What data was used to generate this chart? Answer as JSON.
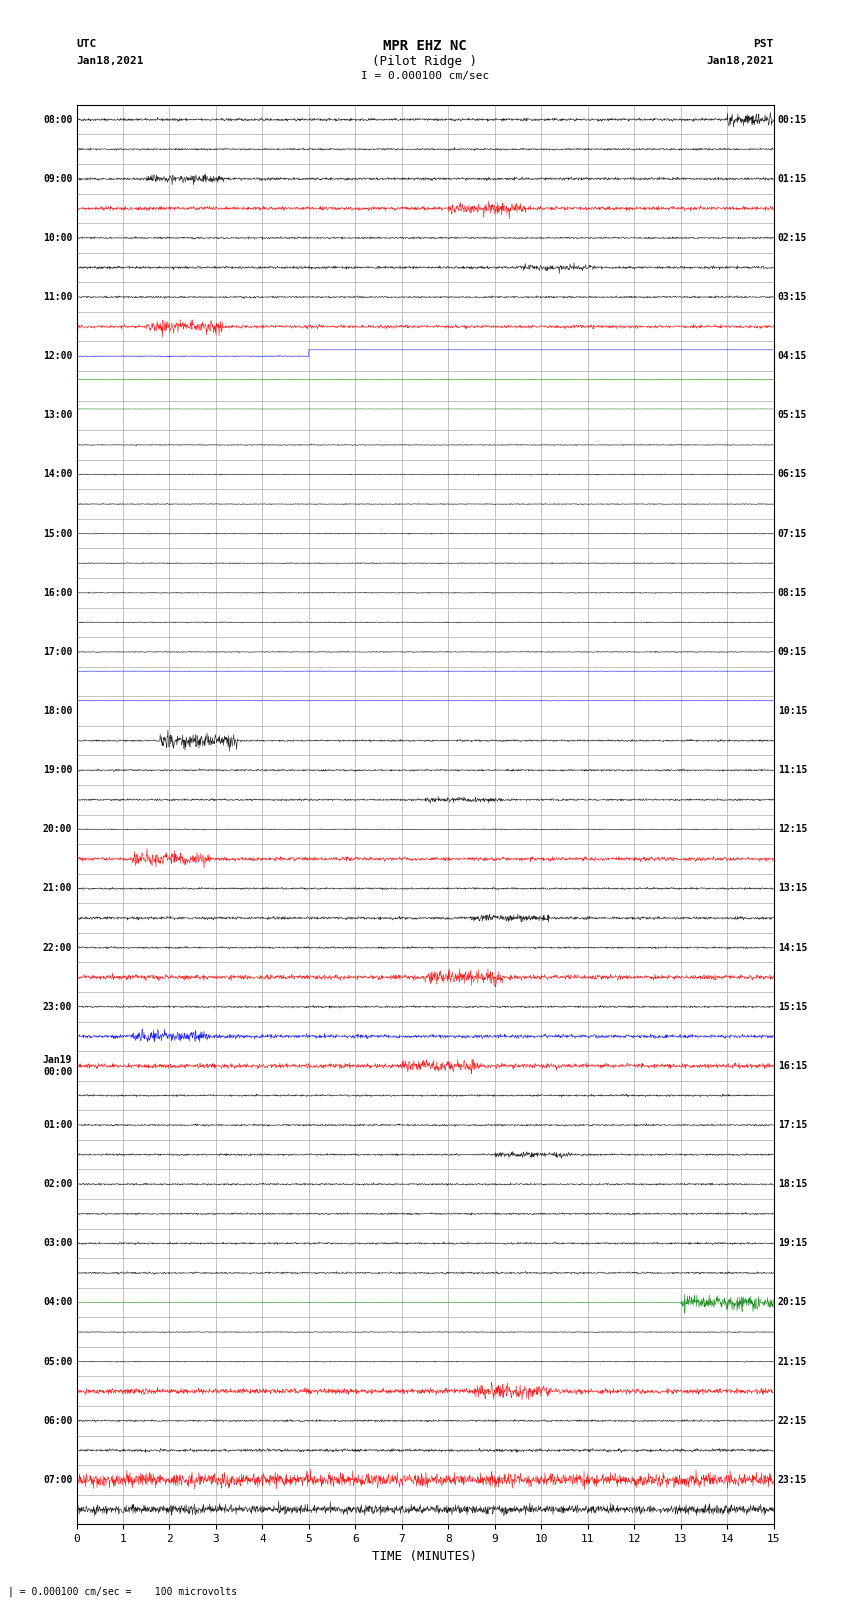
{
  "title_line1": "MPR EHZ NC",
  "title_line2": "(Pilot Ridge )",
  "scale_label": "I = 0.000100 cm/sec",
  "footer_label": "| = 0.000100 cm/sec =    100 microvolts",
  "xlabel": "TIME (MINUTES)",
  "left_times_utc": [
    "08:00",
    "",
    "09:00",
    "",
    "10:00",
    "",
    "11:00",
    "",
    "12:00",
    "",
    "13:00",
    "",
    "14:00",
    "",
    "15:00",
    "",
    "16:00",
    "",
    "17:00",
    "",
    "18:00",
    "",
    "19:00",
    "",
    "20:00",
    "",
    "21:00",
    "",
    "22:00",
    "",
    "23:00",
    "",
    "Jan19\n00:00",
    "",
    "01:00",
    "",
    "02:00",
    "",
    "03:00",
    "",
    "04:00",
    "",
    "05:00",
    "",
    "06:00",
    "",
    "07:00",
    ""
  ],
  "right_times_pst": [
    "00:15",
    "",
    "01:15",
    "",
    "02:15",
    "",
    "03:15",
    "",
    "04:15",
    "",
    "05:15",
    "",
    "06:15",
    "",
    "07:15",
    "",
    "08:15",
    "",
    "09:15",
    "",
    "10:15",
    "",
    "11:15",
    "",
    "12:15",
    "",
    "13:15",
    "",
    "14:15",
    "",
    "15:15",
    "",
    "16:15",
    "",
    "17:15",
    "",
    "18:15",
    "",
    "19:15",
    "",
    "20:15",
    "",
    "21:15",
    "",
    "22:15",
    "",
    "23:15",
    ""
  ],
  "n_rows": 48,
  "bg_color": "white",
  "grid_color": "#aaaaaa"
}
